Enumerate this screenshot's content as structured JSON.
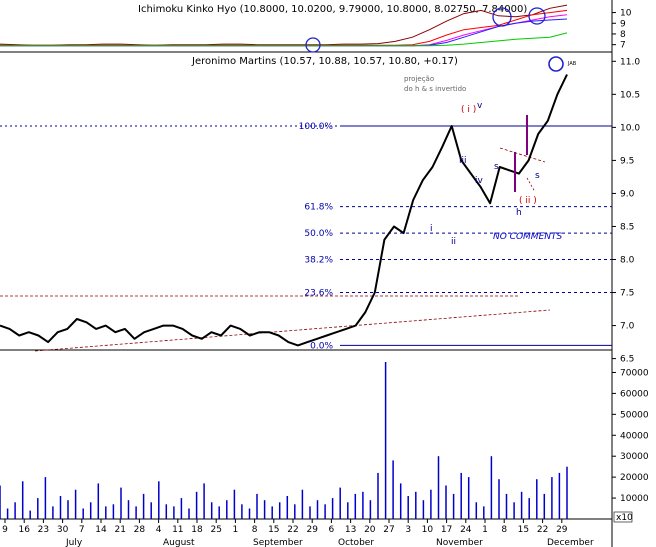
{
  "chart_data": [
    {
      "type": "line",
      "panel": "ichimoku",
      "title": "Ichimoku Kinko Hyo (10.8000, 10.0200, 9.79000, 10.8000, 8.02750, 7.84000)",
      "y_ticks": [
        "10",
        "9",
        "8",
        "7"
      ],
      "ylim": [
        6.5,
        10.8
      ],
      "series": [
        {
          "color": "#8b0000",
          "values": [
            7.05,
            7.0,
            6.95,
            6.95,
            7.0,
            7.0,
            7.05,
            7.05,
            7.0,
            6.95,
            7.0,
            7.0,
            7.0,
            7.05,
            7.05,
            7.0,
            7.0,
            7.0,
            7.0,
            7.0,
            7.05,
            7.05,
            7.1,
            7.3,
            7.7,
            8.4,
            9.2,
            9.9,
            10.2,
            9.7,
            9.6,
            9.8,
            10.4,
            10.7
          ]
        },
        {
          "color": "#ff0000",
          "values": [
            6.95,
            6.95,
            6.95,
            6.95,
            6.95,
            6.95,
            6.95,
            6.95,
            6.95,
            6.95,
            6.95,
            6.95,
            6.95,
            6.95,
            6.95,
            6.95,
            6.95,
            6.95,
            6.95,
            6.95,
            6.95,
            6.95,
            6.95,
            6.95,
            7.0,
            7.3,
            7.9,
            8.4,
            8.6,
            8.8,
            9.3,
            9.8,
            10.0,
            10.2
          ]
        },
        {
          "color": "#ff00ff",
          "values": [
            6.9,
            6.9,
            6.9,
            6.9,
            6.9,
            6.9,
            6.9,
            6.9,
            6.9,
            6.9,
            6.9,
            6.9,
            6.9,
            6.9,
            6.9,
            6.9,
            6.9,
            6.9,
            6.9,
            6.9,
            6.9,
            6.9,
            6.9,
            6.9,
            6.9,
            7.0,
            7.4,
            7.9,
            8.3,
            8.7,
            9.0,
            9.3,
            9.6,
            9.8
          ]
        },
        {
          "color": "#2222ff",
          "values": [
            6.9,
            6.9,
            6.9,
            6.9,
            6.9,
            6.9,
            6.9,
            6.9,
            6.9,
            6.9,
            6.9,
            6.9,
            6.9,
            6.9,
            6.9,
            6.9,
            6.9,
            6.9,
            6.9,
            6.9,
            6.9,
            6.9,
            6.9,
            6.9,
            6.9,
            6.95,
            7.2,
            7.7,
            8.2,
            8.7,
            9.0,
            9.2,
            9.3,
            9.4
          ]
        },
        {
          "color": "#00cc00",
          "values": [
            6.9,
            6.9,
            6.9,
            6.9,
            6.9,
            6.9,
            6.9,
            6.9,
            6.9,
            6.9,
            6.9,
            6.9,
            6.9,
            6.9,
            6.9,
            6.9,
            6.9,
            6.9,
            6.9,
            6.9,
            6.9,
            6.9,
            6.9,
            6.9,
            6.9,
            6.9,
            6.95,
            7.05,
            7.2,
            7.35,
            7.5,
            7.6,
            7.7,
            8.1
          ]
        }
      ]
    },
    {
      "type": "line",
      "panel": "price",
      "title": "Jeronimo Martins (10.57, 10.88, 10.57, 10.80, +0.17)",
      "y_ticks": [
        "11.0",
        "10.5",
        "10.0",
        "9.5",
        "9.0",
        "8.5",
        "8.0",
        "7.5",
        "7.0",
        "6.5"
      ],
      "ylim": [
        6.6,
        11.05
      ],
      "close": [
        7.0,
        6.95,
        6.85,
        6.9,
        6.85,
        6.75,
        6.9,
        6.95,
        7.1,
        7.05,
        6.95,
        7.0,
        6.9,
        6.95,
        6.8,
        6.9,
        6.95,
        7.0,
        7.0,
        6.95,
        6.85,
        6.8,
        6.9,
        6.85,
        7.0,
        6.95,
        6.85,
        6.9,
        6.9,
        6.85,
        6.75,
        6.7,
        6.75,
        6.8,
        6.85,
        6.9,
        6.95,
        7.0,
        7.2,
        7.5,
        8.3,
        8.5,
        8.4,
        8.9,
        9.2,
        9.4,
        9.7,
        10.02,
        9.5,
        9.3,
        9.1,
        8.85,
        9.4,
        9.35,
        9.3,
        9.5,
        9.9,
        10.1,
        10.5,
        10.8
      ],
      "fib_levels": [
        {
          "label": "100.0%",
          "value": 10.02
        },
        {
          "label": "61.8%",
          "value": 8.8
        },
        {
          "label": "50.0%",
          "value": 8.4
        },
        {
          "label": "38.2%",
          "value": 8.0
        },
        {
          "label": "23.6%",
          "value": 7.5
        },
        {
          "label": "0.0%",
          "value": 6.7
        }
      ],
      "wave_labels": [
        {
          "text": "( i )",
          "color": "#cc0000"
        },
        {
          "text": "v",
          "color": "#000088"
        },
        {
          "text": "iii",
          "color": "#000088"
        },
        {
          "text": "iv",
          "color": "#000088"
        },
        {
          "text": "i",
          "color": "#000088"
        },
        {
          "text": "ii",
          "color": "#000088"
        },
        {
          "text": "s",
          "color": "#000088"
        },
        {
          "text": "h",
          "color": "#000088"
        },
        {
          "text": "s",
          "color": "#000088"
        },
        {
          "text": "( ii )",
          "color": "#cc0000"
        }
      ],
      "annotations": [
        "NO COMMENTS",
        "projeção",
        "do h & s invertido",
        "JAB"
      ]
    },
    {
      "type": "bar",
      "panel": "volume",
      "y_ticks": [
        "70000",
        "60000",
        "50000",
        "40000",
        "30000",
        "20000",
        "10000"
      ],
      "ylim": [
        0,
        75000
      ],
      "multiplier_label": "x10",
      "values": [
        16000,
        5000,
        8000,
        18000,
        4000,
        10000,
        20000,
        6000,
        11000,
        9000,
        14000,
        5000,
        8000,
        17000,
        6000,
        7000,
        15000,
        9000,
        6000,
        12000,
        8000,
        18000,
        7000,
        6000,
        10000,
        5000,
        13000,
        17000,
        8000,
        6000,
        9000,
        14000,
        7000,
        5000,
        12000,
        9000,
        6000,
        8000,
        11000,
        7000,
        14000,
        6000,
        9000,
        7000,
        10000,
        15000,
        8000,
        12000,
        13000,
        9000,
        22000,
        75000,
        28000,
        17000,
        11000,
        13000,
        9000,
        14000,
        30000,
        16000,
        12000,
        22000,
        20000,
        8000,
        6000,
        30000,
        19000,
        12000,
        8000,
        13000,
        10000,
        19000,
        12000,
        20000,
        22000,
        25000
      ],
      "x_tick_labels": [
        "9",
        "16",
        "23",
        "30",
        "7",
        "14",
        "21",
        "28",
        "4",
        "11",
        "18",
        "25",
        "1",
        "8",
        "15",
        "22",
        "29",
        "6",
        "13",
        "20",
        "27",
        "3",
        "10",
        "17",
        "24",
        "1",
        "8",
        "15",
        "22",
        "29"
      ],
      "month_labels": [
        "July",
        "August",
        "September",
        "October",
        "November",
        "December"
      ]
    }
  ]
}
